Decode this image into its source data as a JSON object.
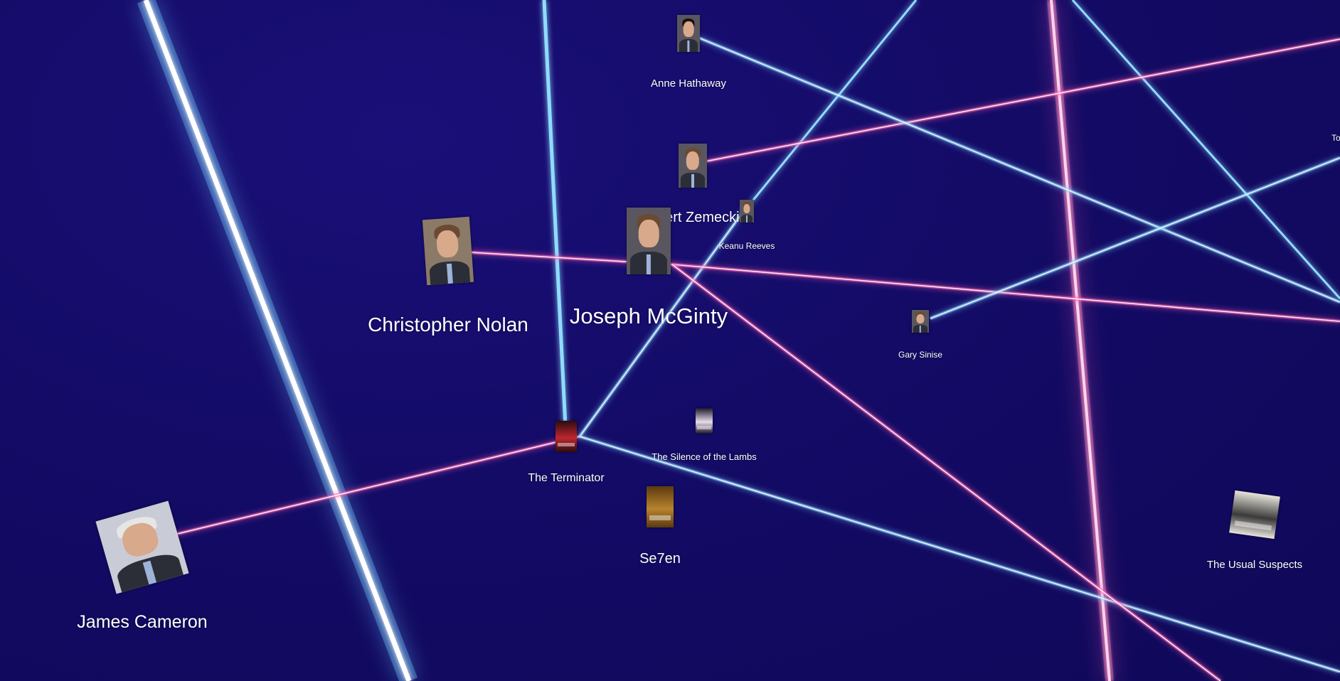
{
  "graph": {
    "title": "",
    "colors": {
      "background": "#130b66",
      "blue_link": "#7fd4ff",
      "pink_link": "#ff5fb0",
      "label": "#ffffff"
    },
    "nodes": [
      {
        "id": "anne",
        "name": "Anne Hathaway",
        "type": "actor"
      },
      {
        "id": "zemeckis",
        "name": "Robert Zemeckis",
        "type": "director"
      },
      {
        "id": "keanu",
        "name": "Keanu Reeves",
        "type": "actor"
      },
      {
        "id": "nolan",
        "name": "Christopher Nolan",
        "type": "director"
      },
      {
        "id": "mcginty",
        "name": "Joseph McGinty",
        "type": "director"
      },
      {
        "id": "sinise",
        "name": "Gary Sinise",
        "type": "actor"
      },
      {
        "id": "terminator",
        "name": "The Terminator",
        "type": "movie"
      },
      {
        "id": "silence",
        "name": "The Silence of the Lambs",
        "type": "movie"
      },
      {
        "id": "se7en",
        "name": "Se7en",
        "type": "movie"
      },
      {
        "id": "suspects",
        "name": "The Usual Suspects",
        "type": "movie"
      },
      {
        "id": "cameron",
        "name": "James Cameron",
        "type": "director"
      },
      {
        "id": "offscreen",
        "name": "To",
        "type": "actor"
      }
    ],
    "links": [
      {
        "from": "cameron",
        "to": "terminator",
        "color": "pink"
      },
      {
        "from": "terminator",
        "to": "keanu",
        "color": "blue"
      },
      {
        "from": "terminator",
        "to": "suspects",
        "color": "blue"
      },
      {
        "from": "nolan",
        "to": "mcginty",
        "color": "pink"
      },
      {
        "from": "mcginty",
        "to": "offscreen",
        "color": "pink"
      },
      {
        "from": "mcginty",
        "to": "suspects",
        "color": "pink"
      },
      {
        "from": "zemeckis",
        "to": "offscreen",
        "color": "pink"
      },
      {
        "from": "anne",
        "to": "offscreen",
        "color": "blue"
      },
      {
        "from": "sinise",
        "to": "offscreen",
        "color": "blue"
      }
    ]
  }
}
